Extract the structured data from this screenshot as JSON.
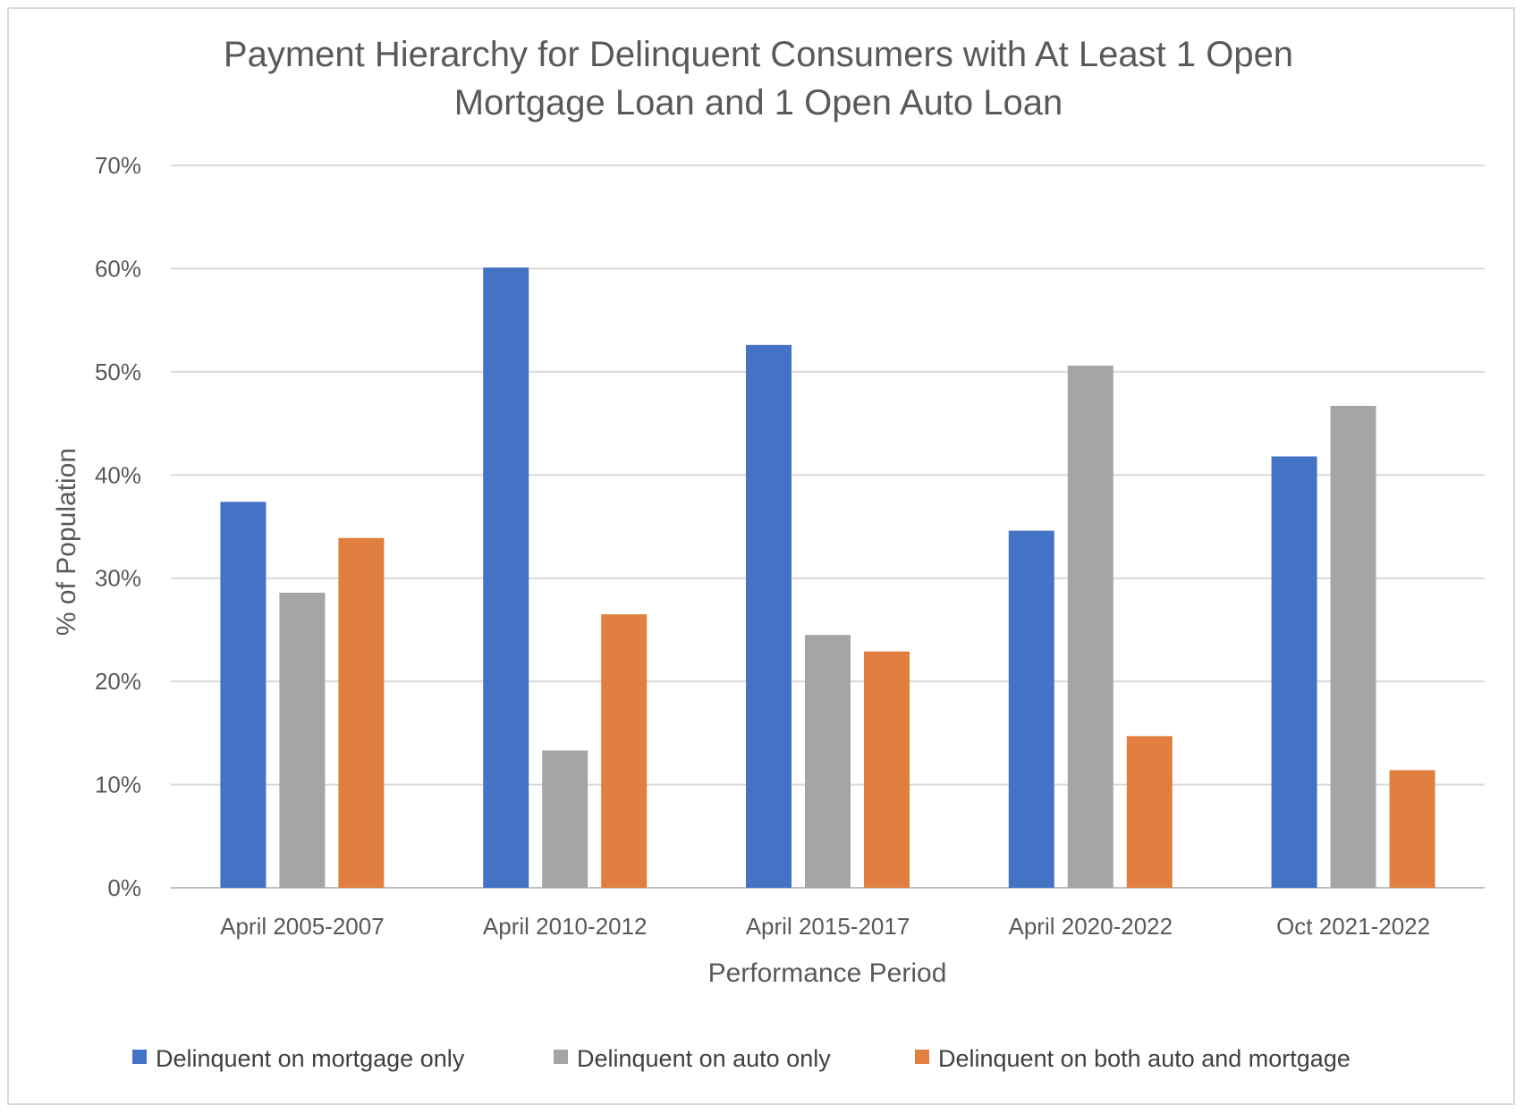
{
  "chart_data": {
    "type": "bar",
    "title_lines": [
      "Payment Hierarchy for Delinquent Consumers with At Least 1 Open",
      "Mortgage Loan and 1 Open Auto Loan"
    ],
    "xlabel": "Performance Period",
    "ylabel": "% of Population",
    "ylim": [
      0,
      70
    ],
    "ytick_values": [
      0,
      10,
      20,
      30,
      40,
      50,
      60,
      70
    ],
    "ytick_labels": [
      "0%",
      "10%",
      "20%",
      "30%",
      "40%",
      "50%",
      "60%",
      "70%"
    ],
    "grid": true,
    "legend_position": "bottom",
    "categories": [
      "April 2005-2007",
      "April 2010-2012",
      "April 2015-2017",
      "April 2020-2022",
      "Oct 2021-2022"
    ],
    "series": [
      {
        "name": "Delinquent on mortgage only",
        "color": "#4472c4",
        "values": [
          37.4,
          60.1,
          52.6,
          34.6,
          41.8
        ]
      },
      {
        "name": "Delinquent on auto only",
        "color": "#a5a5a5",
        "values": [
          28.6,
          13.3,
          24.5,
          50.6,
          46.7
        ]
      },
      {
        "name": "Delinquent on both auto and mortgage",
        "color": "#e07f3f",
        "values": [
          33.9,
          26.5,
          22.9,
          14.7,
          11.4
        ]
      }
    ]
  }
}
